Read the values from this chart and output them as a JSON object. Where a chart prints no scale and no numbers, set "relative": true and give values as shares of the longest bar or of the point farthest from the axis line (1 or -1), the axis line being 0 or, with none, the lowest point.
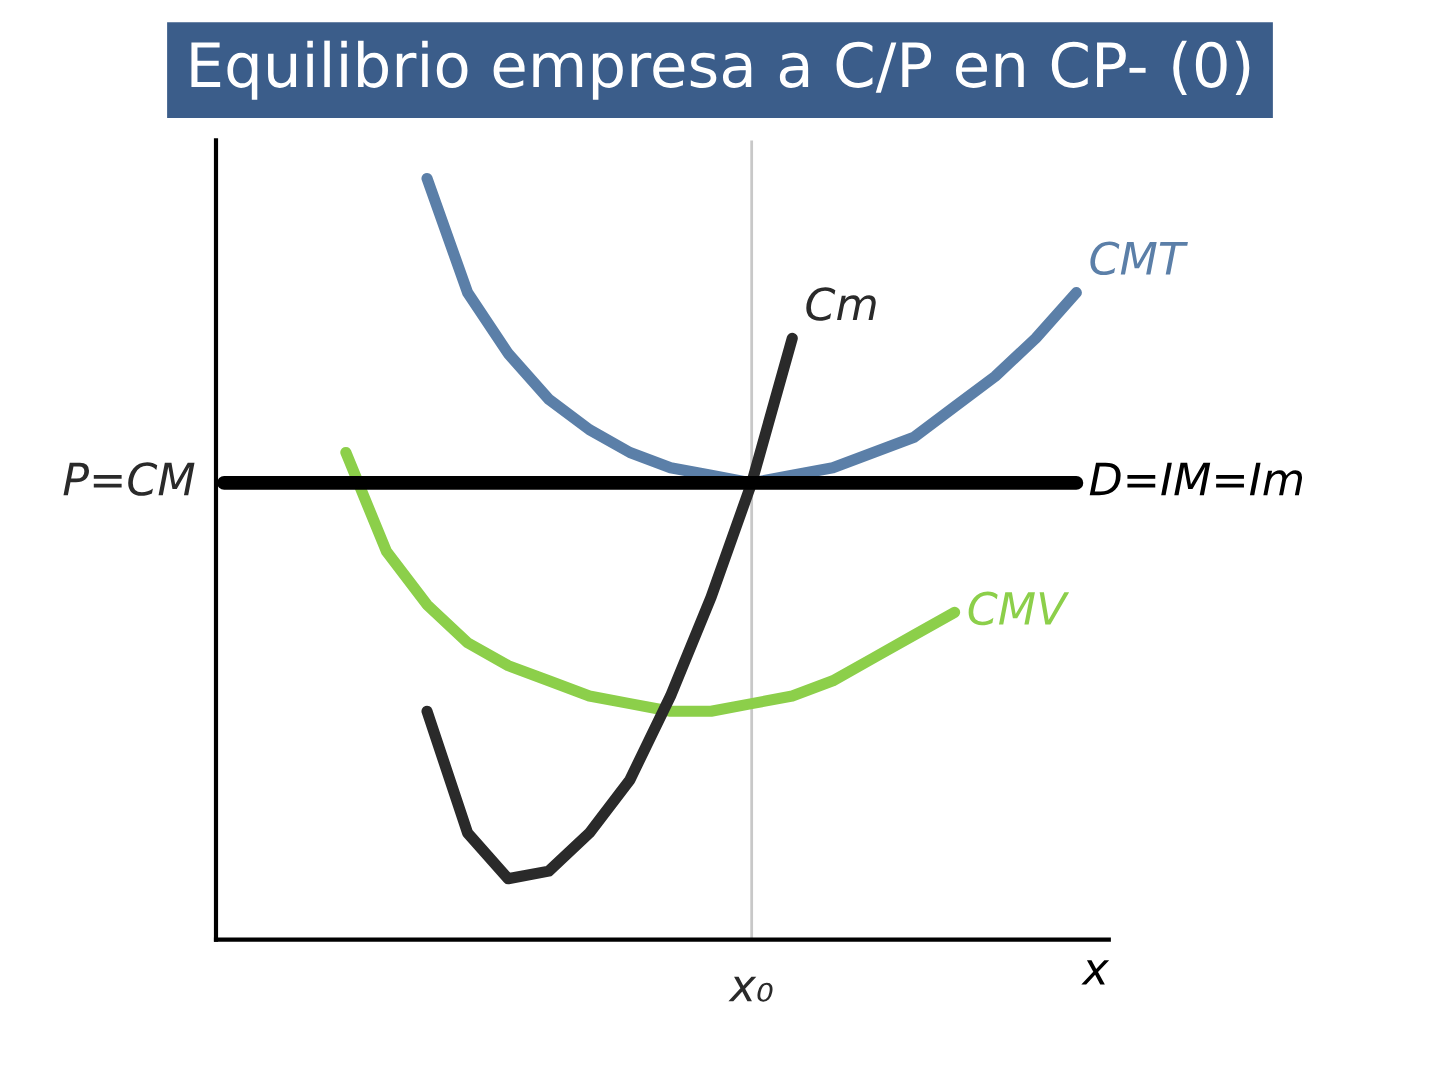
{
  "chart_data": {
    "type": "line",
    "title": "Equilibrio empresa a C/P en CP- (0)",
    "xlabel": "x",
    "relative": true,
    "legend": false,
    "marker": "none",
    "line_style": "solid",
    "categories": [
      null,
      null,
      null,
      null,
      null,
      null,
      null,
      null,
      null,
      null,
      null,
      null,
      null,
      null,
      null,
      null,
      null,
      null,
      null,
      null,
      null,
      null
    ],
    "series": [
      {
        "name": "CMT",
        "color": "#5b7fa8",
        "values": [
          null,
          null,
          null,
          null,
          null,
          1.0,
          0.85,
          0.77,
          0.71,
          0.67,
          0.64,
          0.62,
          0.61,
          0.6,
          0.61,
          0.62,
          0.64,
          0.66,
          0.7,
          0.74,
          0.79,
          0.85
        ]
      },
      {
        "name": "CMV",
        "color": "#8ccf4a",
        "values": [
          null,
          null,
          null,
          0.64,
          0.51,
          0.44,
          0.39,
          0.36,
          0.34,
          0.32,
          0.31,
          0.3,
          0.3,
          0.31,
          0.32,
          0.34,
          0.37,
          0.4,
          0.43,
          null,
          null,
          null
        ]
      },
      {
        "name": "Cm",
        "color": "#2a2a2a",
        "values": [
          null,
          null,
          null,
          null,
          null,
          0.3,
          0.14,
          0.08,
          0.09,
          0.14,
          0.21,
          0.32,
          0.45,
          0.6,
          0.79,
          null,
          null,
          null,
          null,
          null,
          null,
          null
        ]
      },
      {
        "name": "D=IM=Im",
        "color": "#000000",
        "values": [
          0.6,
          0.6,
          0.6,
          0.6,
          0.6,
          0.6,
          0.6,
          0.6,
          0.6,
          0.6,
          0.6,
          0.6,
          0.6,
          0.6,
          0.6,
          0.6,
          0.6,
          0.6,
          0.6,
          0.6,
          0.6,
          0.6
        ]
      }
    ],
    "annotations": [
      "P=CM",
      "x₀"
    ]
  }
}
